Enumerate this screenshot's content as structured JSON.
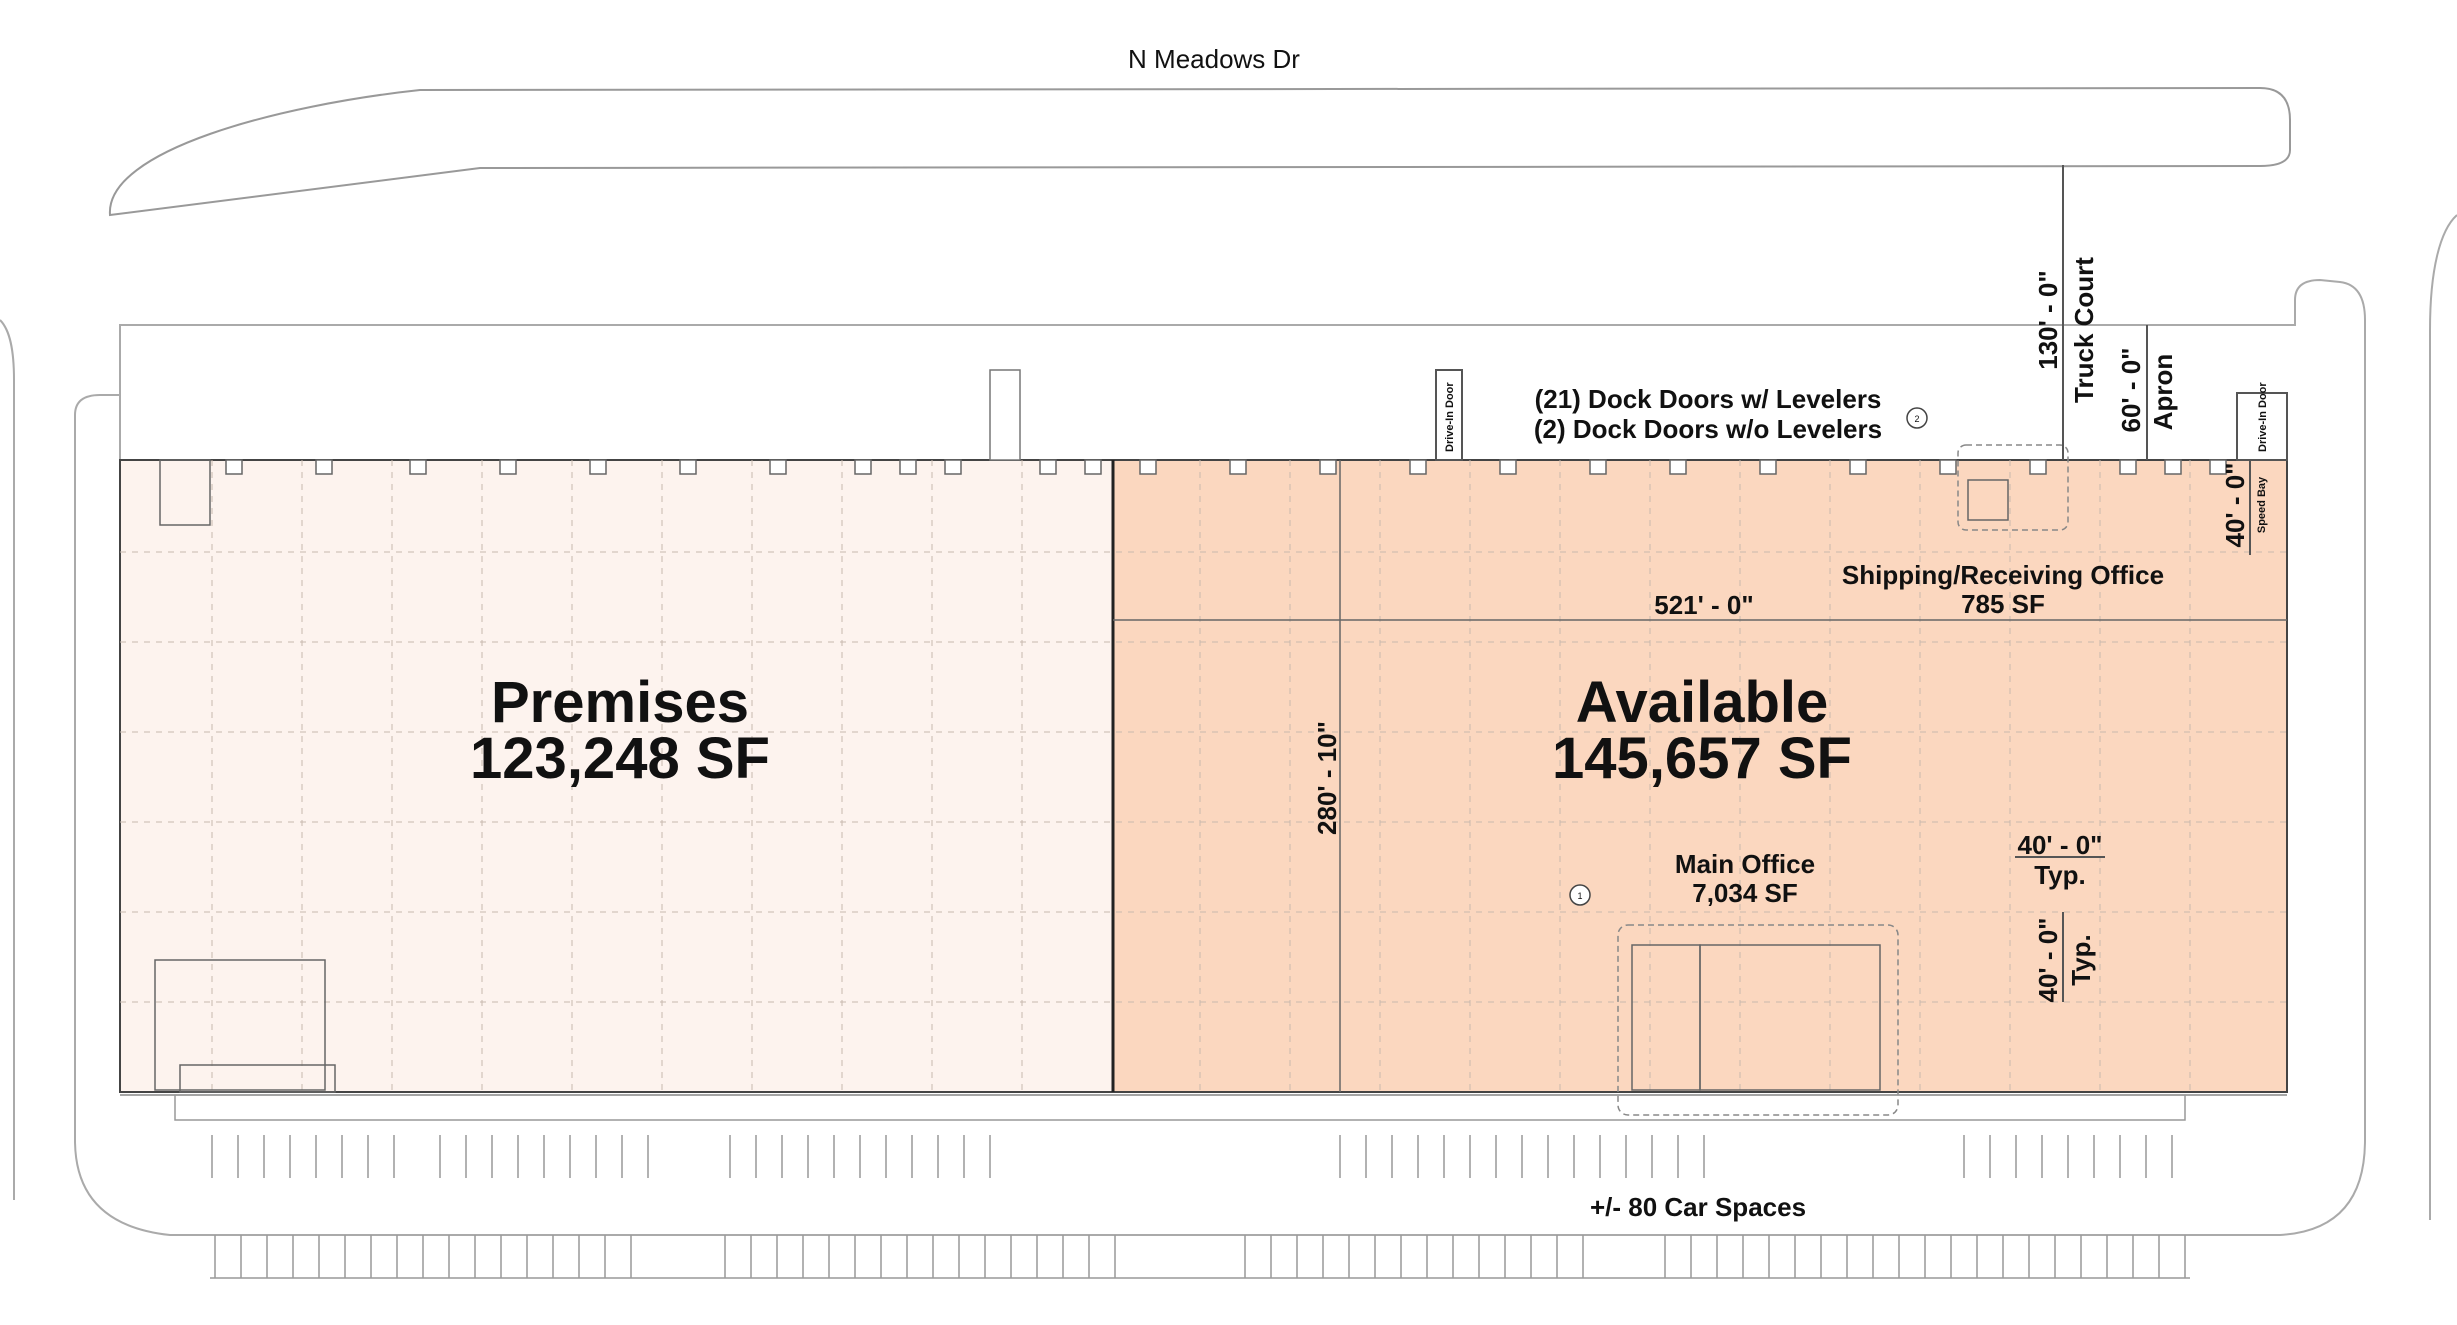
{
  "street": "N Meadows Dr",
  "premises": {
    "name": "Premises",
    "area": "123,248 SF"
  },
  "available": {
    "name": "Available",
    "area": "145,657 SF"
  },
  "docks": {
    "line1": "(21) Dock Doors w/ Levelers",
    "line2": "(2) Dock Doors w/o Levelers"
  },
  "shipping_office": {
    "name": "Shipping/Receiving Office",
    "area": "785 SF"
  },
  "main_office": {
    "name": "Main Office",
    "area": "7,034 SF"
  },
  "dimensions": {
    "width": "521' - 0\"",
    "depth": "280' - 10\"",
    "truck_court_value": "130' - 0\"",
    "truck_court_label": "Truck Court",
    "apron_value": "60' - 0\"",
    "apron_label": "Apron",
    "speed_bay_value": "40' - 0\"",
    "speed_bay_label": "Speed Bay",
    "column_spacing_h": "40' - 0\"",
    "column_spacing_v": "40' - 0\"",
    "typ": "Typ."
  },
  "drive_in_door": "Drive-In Door",
  "parking": "+/- 80 Car Spaces",
  "callout_1": "1",
  "callout_2": "2",
  "colors": {
    "premises_fill": "#fdf3ee",
    "available_fill": "#fbd7bf",
    "line": "#555555"
  }
}
